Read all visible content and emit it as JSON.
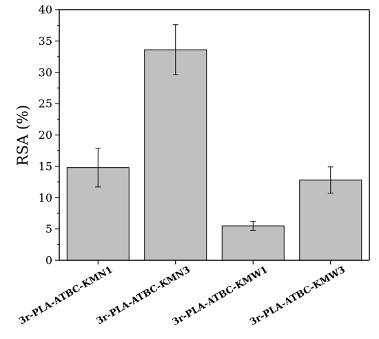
{
  "chart_data": {
    "type": "bar",
    "title": "",
    "xlabel": "",
    "ylabel": "RSA (%)",
    "ylim": [
      0,
      40
    ],
    "yticks": [
      0,
      5,
      10,
      15,
      20,
      25,
      30,
      35,
      40
    ],
    "categories": [
      "3r-PLA-ATBC-KMN1",
      "3r-PLA-ATBC-KMN3",
      "3r-PLA-ATBC-KMW1",
      "3r-PLA-ATBC-KMW3"
    ],
    "values": [
      14.8,
      33.6,
      5.5,
      12.8
    ],
    "errors": [
      3.1,
      4.0,
      0.7,
      2.1
    ],
    "grid": false,
    "legend": "none",
    "colors": {
      "bar_fill": "#c0c0c0",
      "bar_edge": "#000000",
      "error_bar": "#000000"
    }
  }
}
